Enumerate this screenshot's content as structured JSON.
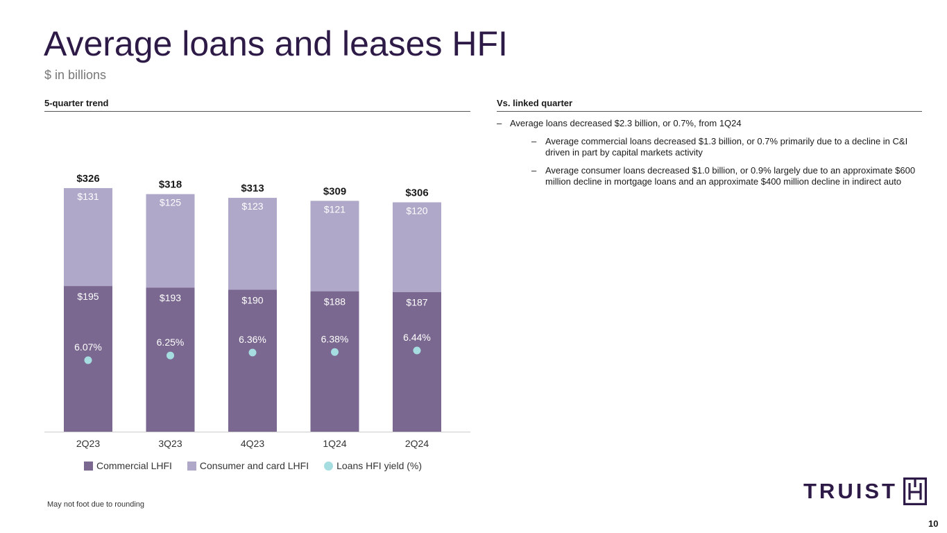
{
  "header": {
    "title": "Average loans and leases HFI",
    "subtitle": "$ in billions"
  },
  "left_panel": {
    "heading": "5-quarter trend"
  },
  "right_panel": {
    "heading": "Vs. linked quarter",
    "bullets": [
      "Average loans decreased $2.3 billion, or 0.7%, from 1Q24",
      "Average commercial loans decreased $1.3 billion, or 0.7% primarily due to a decline in C&I driven in part by capital markets activity",
      "Average consumer loans decreased $1.0 billion, or 0.9% largely due to an approximate $600 million decline in mortgage loans and an approximate $400 million decline in indirect auto"
    ],
    "dash": "–"
  },
  "chart_data": {
    "type": "bar",
    "stacked": true,
    "categories": [
      "2Q23",
      "3Q23",
      "4Q23",
      "1Q24",
      "2Q24"
    ],
    "series": [
      {
        "name": "Commercial LHFI",
        "values": [
          195,
          193,
          190,
          188,
          187
        ],
        "labels": [
          "$195",
          "$193",
          "$190",
          "$188",
          "$187"
        ],
        "color": "#7a6890"
      },
      {
        "name": "Consumer and card LHFI",
        "values": [
          131,
          125,
          123,
          121,
          120
        ],
        "labels": [
          "$131",
          "$125",
          "$123",
          "$121",
          "$120"
        ],
        "color": "#afa8c9"
      }
    ],
    "totals": [
      326,
      318,
      313,
      309,
      306
    ],
    "total_labels": [
      "$326",
      "$318",
      "$313",
      "$309",
      "$306"
    ],
    "yield": {
      "name": "Loans HFI yield (%)",
      "values": [
        6.07,
        6.25,
        6.36,
        6.38,
        6.44
      ],
      "labels": [
        "6.07%",
        "6.25%",
        "6.36%",
        "6.38%",
        "6.44%"
      ],
      "color": "#a5dde1"
    },
    "ylim": [
      0,
      340
    ],
    "grid": false,
    "legend_position": "bottom"
  },
  "footnote": "May not foot due to rounding",
  "logo": {
    "text": "TRUIST",
    "color": "#2e1a47"
  },
  "page_number": "10"
}
